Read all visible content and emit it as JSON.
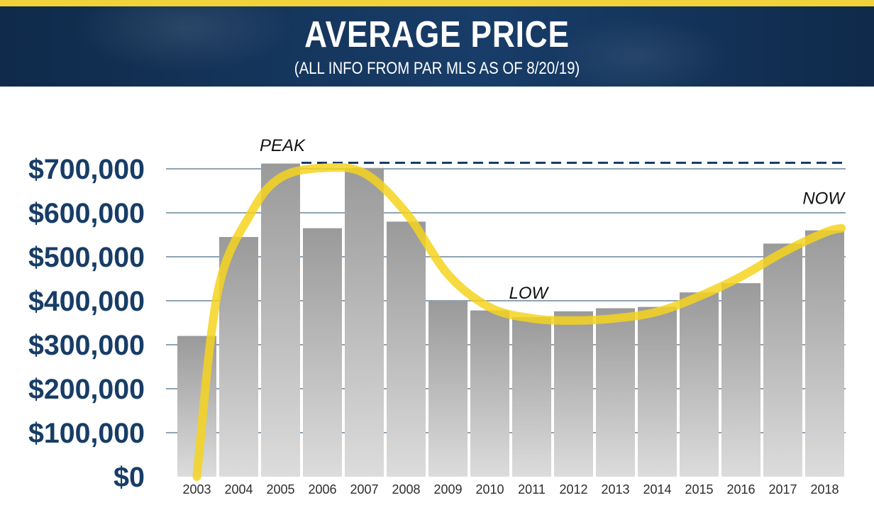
{
  "header": {
    "title": "AVERAGE PRICE",
    "subtitle": "(ALL INFO FROM PAR MLS AS OF 8/20/19)"
  },
  "colors": {
    "stripe": "#f2d23a",
    "banner": "#173a63",
    "axis_text": "#173d67",
    "gridline": "#8fa3b3",
    "bar_top": "#9a9a9a",
    "bar_bottom": "#dcdcdc",
    "trend": "#f5d41e",
    "peak_line": "#173d67"
  },
  "chart_data": {
    "type": "bar",
    "categories": [
      "2003",
      "2004",
      "2005",
      "2006",
      "2007",
      "2008",
      "2009",
      "2010",
      "2011",
      "2012",
      "2013",
      "2014",
      "2015",
      "2016",
      "2017",
      "2018"
    ],
    "values": [
      320000,
      545000,
      712000,
      565000,
      702000,
      580000,
      400000,
      378000,
      363000,
      376000,
      383000,
      386000,
      419000,
      440000,
      530000,
      560000
    ],
    "ylim": [
      0,
      700000
    ],
    "yticks": [
      0,
      100000,
      200000,
      300000,
      400000,
      500000,
      600000,
      700000
    ],
    "ytick_labels": [
      "$0",
      "$100,000",
      "$200,000",
      "$300,000",
      "$400,000",
      "$500,000",
      "$600,000",
      "$700,000"
    ],
    "grid": true,
    "trend_line": [
      {
        "x": 2003.0,
        "y": 0
      },
      {
        "x": 2003.5,
        "y": 420000
      },
      {
        "x": 2004.3,
        "y": 600000
      },
      {
        "x": 2005.0,
        "y": 680000
      },
      {
        "x": 2006.0,
        "y": 702000
      },
      {
        "x": 2007.0,
        "y": 690000
      },
      {
        "x": 2008.0,
        "y": 600000
      },
      {
        "x": 2009.0,
        "y": 460000
      },
      {
        "x": 2010.0,
        "y": 385000
      },
      {
        "x": 2011.0,
        "y": 360000
      },
      {
        "x": 2012.0,
        "y": 355000
      },
      {
        "x": 2013.0,
        "y": 360000
      },
      {
        "x": 2014.0,
        "y": 375000
      },
      {
        "x": 2015.0,
        "y": 410000
      },
      {
        "x": 2016.0,
        "y": 455000
      },
      {
        "x": 2017.0,
        "y": 510000
      },
      {
        "x": 2018.0,
        "y": 555000
      },
      {
        "x": 2018.4,
        "y": 565000
      }
    ],
    "peak_line_value": 712000,
    "annotations": [
      {
        "text": "PEAK",
        "x": "2005",
        "y": 740000
      },
      {
        "text": "LOW",
        "x": "2011",
        "y": 405000
      },
      {
        "text": "NOW",
        "x": "2018",
        "y": 620000
      }
    ]
  }
}
